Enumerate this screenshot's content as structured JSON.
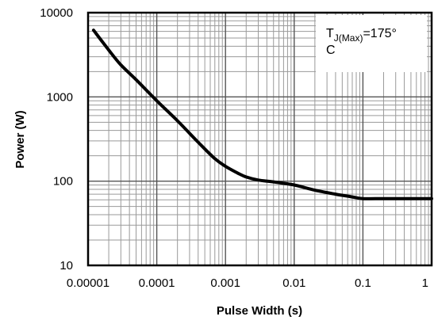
{
  "chart_data": {
    "type": "line",
    "x_scale": "log",
    "y_scale": "log",
    "xlim": [
      1e-05,
      1
    ],
    "ylim": [
      10,
      10000
    ],
    "grid": true,
    "xlabel": "Pulse Width (s)",
    "ylabel": "Power (W)",
    "x_tick_labels": [
      "0.00001",
      "0.0001",
      "0.001",
      "0.01",
      "0.1",
      "1"
    ],
    "y_tick_labels": [
      "10",
      "100",
      "1000",
      "10000"
    ],
    "annotation": {
      "main": "T",
      "subscript": "J(Max)",
      "value": "=175°",
      "unit": "C"
    },
    "series": [
      {
        "x": [
          1.2e-05,
          2e-05,
          3e-05,
          5e-05,
          0.0001,
          0.0002,
          0.0004,
          0.0007,
          0.001,
          0.0015,
          0.002,
          0.003,
          0.005,
          0.01,
          0.02,
          0.04,
          0.07,
          0.1,
          0.2,
          0.5,
          1
        ],
        "y": [
          6200,
          3600,
          2400,
          1600,
          900,
          520,
          290,
          185,
          150,
          125,
          112,
          103,
          98,
          90,
          78,
          70,
          65,
          62,
          62,
          62,
          62
        ]
      }
    ]
  }
}
